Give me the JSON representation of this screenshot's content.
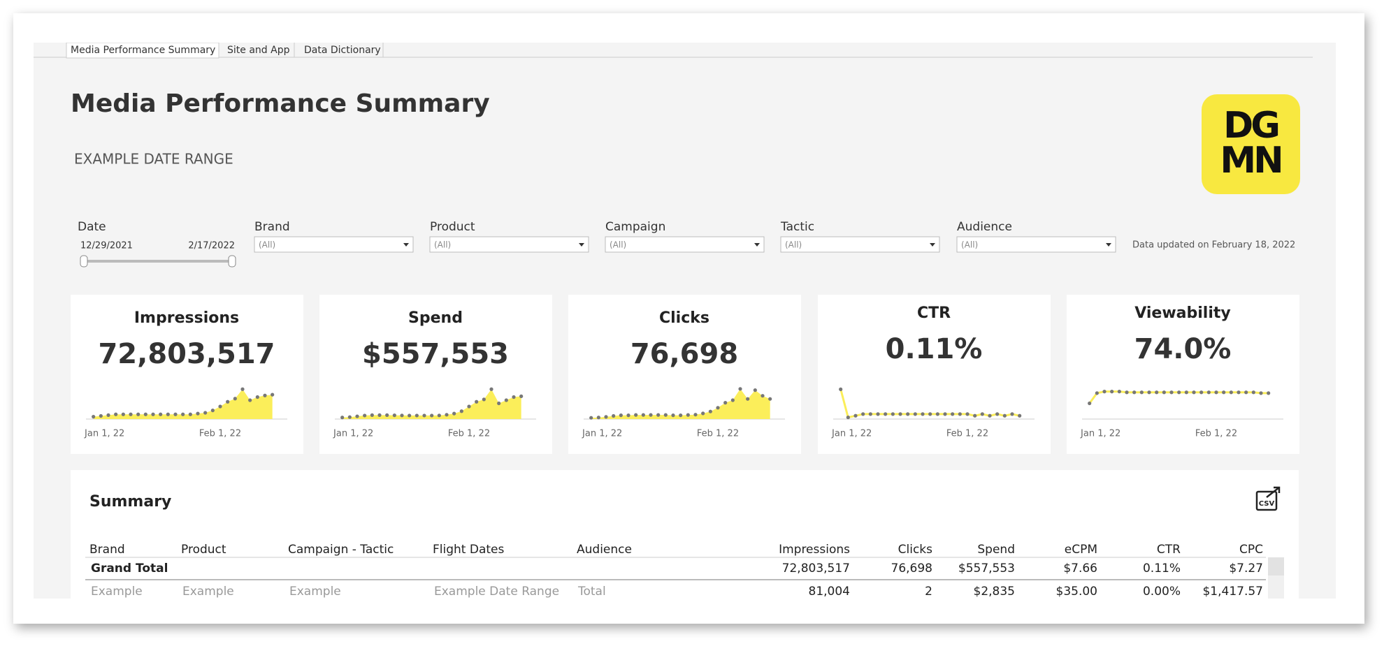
{
  "tabs": [
    "Media Performance Summary",
    "Site and App",
    "Data Dictionary"
  ],
  "header": {
    "title": "Media Performance Summary",
    "subtitle": "EXAMPLE DATE RANGE",
    "logo": {
      "line1": "DG",
      "line2": "MN"
    }
  },
  "filters": {
    "date": {
      "label": "Date",
      "start": "12/29/2021",
      "end": "2/17/2022"
    },
    "dropdowns": [
      {
        "label": "Brand",
        "value": "(All)"
      },
      {
        "label": "Product",
        "value": "(All)"
      },
      {
        "label": "Campaign",
        "value": "(All)"
      },
      {
        "label": "Tactic",
        "value": "(All)"
      },
      {
        "label": "Audience",
        "value": "(All)"
      }
    ],
    "updated": "Data updated on February 18, 2022"
  },
  "kpis": [
    {
      "title": "Impressions",
      "value": "72,803,517",
      "chart_data": {
        "type": "area",
        "x": [
          0,
          2,
          4,
          6,
          8,
          10,
          12,
          14,
          16,
          18,
          20,
          22,
          24,
          26,
          28,
          30,
          32,
          34,
          36,
          38,
          40,
          42,
          44,
          46,
          48
        ],
        "values": [
          300000,
          400000,
          500000,
          600000,
          600000,
          600000,
          600000,
          600000,
          600000,
          600000,
          600000,
          600000,
          600000,
          600000,
          700000,
          800000,
          1100000,
          1600000,
          2200000,
          2600000,
          3800000,
          2400000,
          2800000,
          3000000,
          3100000
        ],
        "xlim": [
          -2,
          52
        ],
        "ylim": [
          0,
          4000000
        ],
        "xticks": [
          {
            "value": 3,
            "label": "Jan 1, 22"
          },
          {
            "value": 34,
            "label": "Feb 1, 22"
          }
        ],
        "color": "#fbee5a"
      }
    },
    {
      "title": "Spend",
      "value": "$557,553",
      "chart_data": {
        "type": "area",
        "x": [
          0,
          2,
          4,
          6,
          8,
          10,
          12,
          14,
          16,
          18,
          20,
          22,
          24,
          26,
          28,
          30,
          32,
          34,
          36,
          38,
          40,
          42,
          44,
          46,
          48
        ],
        "values": [
          2000,
          2500,
          3500,
          4500,
          5000,
          5000,
          5000,
          4800,
          4600,
          4500,
          4500,
          4500,
          4500,
          4600,
          5500,
          7000,
          10000,
          16000,
          22000,
          25000,
          38000,
          20000,
          24000,
          28000,
          29000
        ],
        "xlim": [
          -2,
          52
        ],
        "ylim": [
          0,
          40000
        ],
        "xticks": [
          {
            "value": 3,
            "label": "Jan 1, 22"
          },
          {
            "value": 34,
            "label": "Feb 1, 22"
          }
        ],
        "color": "#fbee5a"
      }
    },
    {
      "title": "Clicks",
      "value": "76,698",
      "chart_data": {
        "type": "area",
        "x": [
          0,
          2,
          4,
          6,
          8,
          10,
          12,
          14,
          16,
          18,
          20,
          22,
          24,
          26,
          28,
          30,
          32,
          34,
          36,
          38,
          40,
          42,
          44,
          46,
          48
        ],
        "values": [
          200,
          250,
          350,
          500,
          600,
          600,
          650,
          650,
          650,
          650,
          650,
          600,
          600,
          650,
          700,
          900,
          1200,
          1800,
          2600,
          3000,
          4800,
          3200,
          4600,
          3700,
          3200
        ],
        "xlim": [
          -2,
          52
        ],
        "ylim": [
          0,
          5000
        ],
        "xticks": [
          {
            "value": 3,
            "label": "Jan 1, 22"
          },
          {
            "value": 34,
            "label": "Feb 1, 22"
          }
        ],
        "color": "#fbee5a"
      }
    },
    {
      "title": "CTR",
      "value": "0.11%",
      "chart_data": {
        "type": "line",
        "x": [
          0,
          2,
          4,
          6,
          8,
          10,
          12,
          14,
          16,
          18,
          20,
          22,
          24,
          26,
          28,
          30,
          32,
          34,
          36,
          38,
          40,
          42,
          44,
          46,
          48
        ],
        "values": [
          0.26,
          0.09,
          0.1,
          0.11,
          0.11,
          0.11,
          0.11,
          0.11,
          0.11,
          0.11,
          0.11,
          0.11,
          0.11,
          0.11,
          0.11,
          0.11,
          0.11,
          0.11,
          0.1,
          0.11,
          0.1,
          0.11,
          0.1,
          0.11,
          0.1
        ],
        "xlim": [
          -2,
          52
        ],
        "ylim": [
          0.08,
          0.27
        ],
        "xticks": [
          {
            "value": 3,
            "label": "Jan 1, 22"
          },
          {
            "value": 34,
            "label": "Feb 1, 22"
          }
        ],
        "color": "#fbee5a"
      }
    },
    {
      "title": "Viewability",
      "value": "74.0%",
      "chart_data": {
        "type": "line",
        "x": [
          0,
          2,
          4,
          6,
          8,
          10,
          12,
          14,
          16,
          18,
          20,
          22,
          24,
          26,
          28,
          30,
          32,
          34,
          36,
          38,
          40,
          42,
          44,
          46,
          48
        ],
        "values": [
          60,
          73,
          75,
          75,
          75,
          74,
          74,
          74,
          74,
          74,
          74,
          74,
          74,
          74,
          74,
          74,
          74,
          74,
          74,
          74,
          74,
          74,
          74,
          73,
          73
        ],
        "xlim": [
          -2,
          52
        ],
        "ylim": [
          40,
          80
        ],
        "xticks": [
          {
            "value": 3,
            "label": "Jan 1, 22"
          },
          {
            "value": 34,
            "label": "Feb 1, 22"
          }
        ],
        "color": "#fbee5a"
      }
    }
  ],
  "summary": {
    "title": "Summary",
    "export": "CSV",
    "columns": [
      "Brand",
      "Product",
      "Campaign  - Tactic",
      "Flight Dates",
      "Audience",
      "Impressions",
      "Clicks",
      "Spend",
      "eCPM",
      "CTR",
      "CPC"
    ],
    "rows": [
      [
        "Grand Total",
        "",
        "",
        "",
        "",
        "72,803,517",
        "76,698",
        "$557,553",
        "$7.66",
        "0.11%",
        "$7.27"
      ],
      [
        "Example",
        "Example",
        "Example",
        "Example Date Range",
        "Total",
        "81,004",
        "2",
        "$2,835",
        "$35.00",
        "0.00%",
        "$1,417.57"
      ]
    ]
  }
}
